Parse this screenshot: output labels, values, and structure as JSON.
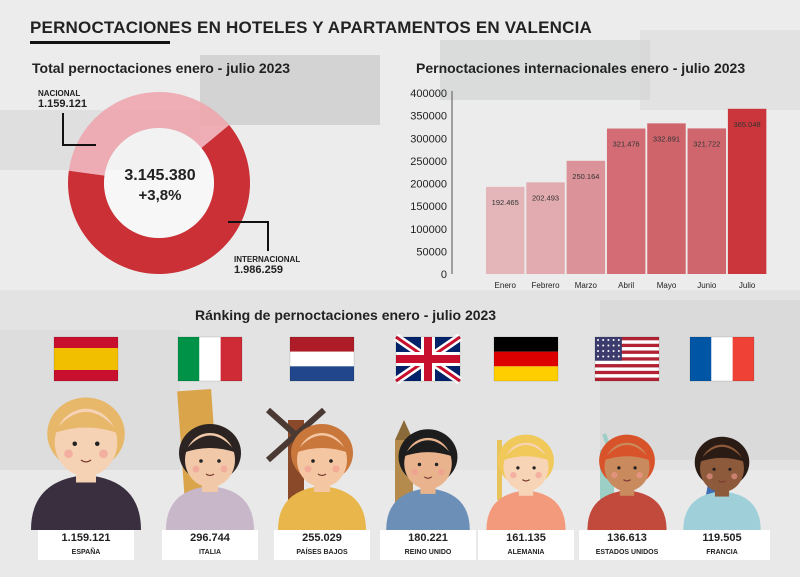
{
  "title": "PERNOCTACIONES EN HOTELES Y APARTAMENTOS EN VALENCIA",
  "donut": {
    "title": "Total pernoctaciones enero - julio 2023",
    "total": "3.145.380",
    "change": "+3,8%",
    "nacional_label": "NACIONAL",
    "nacional_value": "1.159.121",
    "internacional_label": "INTERNACIONAL",
    "internacional_value": "1.986.259"
  },
  "ranking_title": "Ránking de pernoctaciones enero - julio 2023",
  "chart_data": [
    {
      "type": "pie",
      "title": "Total pernoctaciones enero - julio 2023",
      "categories": [
        "NACIONAL",
        "INTERNACIONAL"
      ],
      "values": [
        1159121,
        1986259
      ],
      "colors": [
        "#f0a3ab",
        "#c8262c"
      ]
    },
    {
      "type": "bar",
      "title": "Pernoctaciones internacionales enero - julio 2023",
      "categories": [
        "Enero",
        "Febrero",
        "Marzo",
        "Abril",
        "Mayo",
        "Junio",
        "Julio"
      ],
      "values": [
        192465,
        202493,
        250164,
        321476,
        332891,
        321722,
        365048
      ],
      "value_labels": [
        "192.465",
        "202.493",
        "250.164",
        "321.476",
        "332.891",
        "321.722",
        "365.048"
      ],
      "ylim": [
        0,
        400000
      ],
      "yticks": [
        "0",
        "50000",
        "100000",
        "150000",
        "200000",
        "250000",
        "300000",
        "350000",
        "400000"
      ],
      "colors": [
        "#e3b1b4",
        "#dfa5a9",
        "#d98a90",
        "#d06169",
        "#cc5860",
        "#cd5a62",
        "#c8262c"
      ]
    },
    {
      "type": "bar",
      "title": "Ránking de pernoctaciones enero - julio 2023",
      "categories": [
        "ESPAÑA",
        "ITALIA",
        "PAÍSES BAJOS",
        "REINO UNIDO",
        "ALEMANIA",
        "ESTADOS UNIDOS",
        "FRANCIA"
      ],
      "values": [
        1159121,
        296744,
        255029,
        180221,
        161135,
        136613,
        119505
      ],
      "value_labels": [
        "1.159.121",
        "296.744",
        "255.029",
        "180.221",
        "161.135",
        "136.613",
        "119.505"
      ],
      "icons": [
        "spain-flag-icon",
        "italy-flag-icon",
        "netherlands-flag-icon",
        "uk-flag-icon",
        "germany-flag-icon",
        "usa-flag-icon",
        "france-flag-icon"
      ]
    }
  ]
}
